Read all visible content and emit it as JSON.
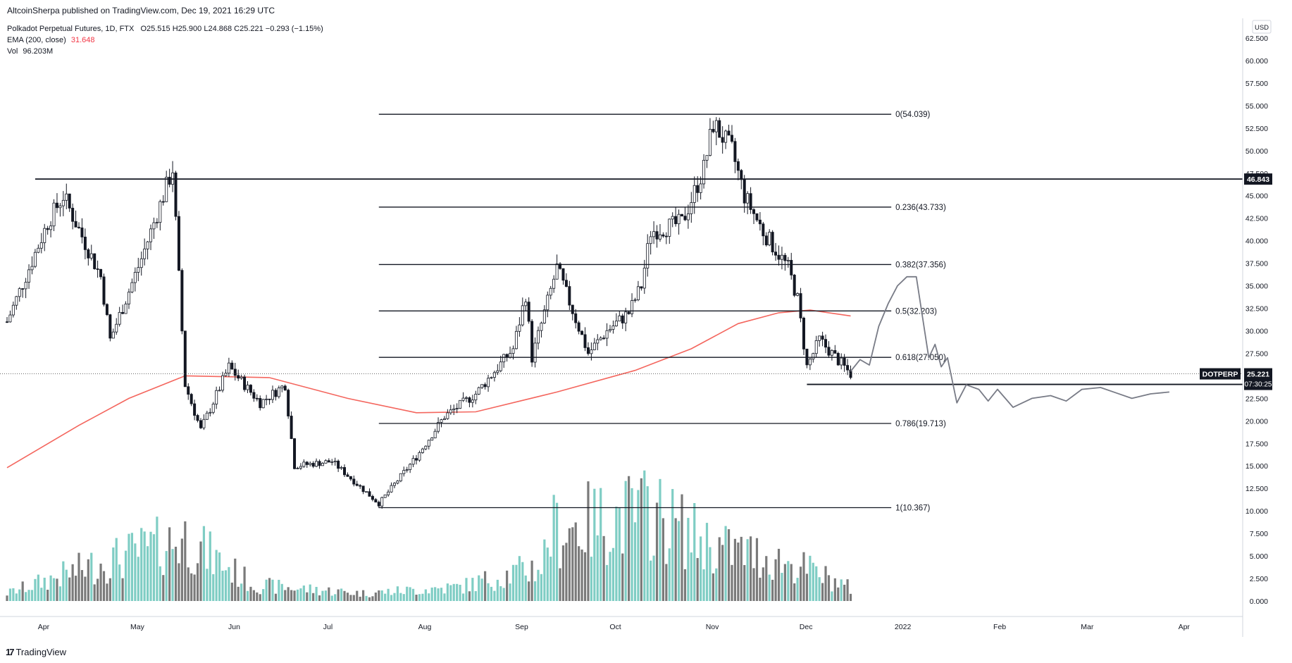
{
  "publisher": "AltcoinSherpa published on TradingView.com, Dec 19, 2021 16:29 UTC",
  "legend": {
    "symbol": "Polkadot Perpetual Futures, 1D, FTX",
    "ohlc": "O25.515  H25.900  L24.868  C25.221  −0.293 (−1.15%)",
    "ema_label": "EMA (200, close)",
    "ema_value": "31.648",
    "vol_label": "Vol",
    "vol_value": "96.203M"
  },
  "currency": "USD",
  "footer": {
    "logo_mark": "17",
    "logo_text": "TradingView"
  },
  "colors": {
    "candle": "#131722",
    "ema": "#f4665e",
    "vol_up": "#7fcdc4",
    "vol_down": "#7a7a7a",
    "projection": "#787b86"
  },
  "chart_data": {
    "type": "candlestick",
    "y_axis_ticks": [
      "62.500",
      "60.000",
      "57.500",
      "55.000",
      "52.500",
      "50.000",
      "47.500",
      "45.000",
      "42.500",
      "40.000",
      "37.500",
      "35.000",
      "32.500",
      "30.000",
      "27.500",
      "25.000",
      "22.500",
      "20.000",
      "17.500",
      "15.000",
      "12.500",
      "10.000",
      "7.500",
      "5.000",
      "2.500",
      "0.000"
    ],
    "y_range": [
      0,
      62.5
    ],
    "x_axis_labels": [
      "Apr",
      "May",
      "Jun",
      "Jul",
      "Aug",
      "Sep",
      "Oct",
      "Nov",
      "Dec",
      "2022",
      "Feb",
      "Mar",
      "Apr"
    ],
    "x_range": [
      "2021-03-23",
      "2022-04-13"
    ],
    "fib_levels": [
      {
        "label": "0(54.039)",
        "value": 54.039
      },
      {
        "label": "0.236(43.733)",
        "value": 43.733
      },
      {
        "label": "0.382(37.356)",
        "value": 37.356
      },
      {
        "label": "0.5(32.203)",
        "value": 32.203
      },
      {
        "label": "0.618(27.050)",
        "value": 27.05
      },
      {
        "label": "0.786(19.713)",
        "value": 19.713
      },
      {
        "label": "1(10.367)",
        "value": 10.367
      }
    ],
    "fib_start": "2021-07-20",
    "fib_end": "2021-12-31",
    "horizontal_levels": [
      {
        "label": "46.843",
        "value": 46.843,
        "start": "2021-04-01"
      },
      {
        "label": "24.048",
        "value": 24.048,
        "start": "2021-12-04"
      }
    ],
    "price_badge": {
      "symbol": "DOTPERP",
      "price": "25.221",
      "countdown": "07:30:25",
      "value": 25.221
    },
    "ohlc_anchor_points": [
      {
        "date": "2021-03-23",
        "price": 31
      },
      {
        "date": "2021-04-05",
        "price": 42
      },
      {
        "date": "2021-04-10",
        "price": 45
      },
      {
        "date": "2021-04-22",
        "price": 36
      },
      {
        "date": "2021-04-25",
        "price": 29
      },
      {
        "date": "2021-05-05",
        "price": 38
      },
      {
        "date": "2021-05-10",
        "price": 43
      },
      {
        "date": "2021-05-15",
        "price": 48
      },
      {
        "date": "2021-05-19",
        "price": 24
      },
      {
        "date": "2021-05-24",
        "price": 19
      },
      {
        "date": "2021-06-02",
        "price": 26
      },
      {
        "date": "2021-06-12",
        "price": 22
      },
      {
        "date": "2021-06-20",
        "price": 24
      },
      {
        "date": "2021-06-23",
        "price": 15
      },
      {
        "date": "2021-07-05",
        "price": 15.5
      },
      {
        "date": "2021-07-20",
        "price": 10.8
      },
      {
        "date": "2021-08-01",
        "price": 16
      },
      {
        "date": "2021-08-10",
        "price": 20.5
      },
      {
        "date": "2021-08-20",
        "price": 23
      },
      {
        "date": "2021-09-01",
        "price": 28
      },
      {
        "date": "2021-09-05",
        "price": 34
      },
      {
        "date": "2021-09-07",
        "price": 27
      },
      {
        "date": "2021-09-15",
        "price": 37
      },
      {
        "date": "2021-09-25",
        "price": 27.5
      },
      {
        "date": "2021-10-01",
        "price": 30
      },
      {
        "date": "2021-10-08",
        "price": 32
      },
      {
        "date": "2021-10-12",
        "price": 35
      },
      {
        "date": "2021-10-15",
        "price": 41
      },
      {
        "date": "2021-10-25",
        "price": 42
      },
      {
        "date": "2021-11-01",
        "price": 48
      },
      {
        "date": "2021-11-04",
        "price": 53
      },
      {
        "date": "2021-11-10",
        "price": 50
      },
      {
        "date": "2021-11-14",
        "price": 45
      },
      {
        "date": "2021-11-20",
        "price": 41
      },
      {
        "date": "2021-11-28",
        "price": 37
      },
      {
        "date": "2021-12-01",
        "price": 33.5
      },
      {
        "date": "2021-12-04",
        "price": 26
      },
      {
        "date": "2021-12-08",
        "price": 29
      },
      {
        "date": "2021-12-18",
        "price": 25.2
      }
    ],
    "ema_points": [
      {
        "date": "2021-03-23",
        "price": 14.8
      },
      {
        "date": "2021-04-15",
        "price": 19.5
      },
      {
        "date": "2021-05-01",
        "price": 22.5
      },
      {
        "date": "2021-05-19",
        "price": 25.0
      },
      {
        "date": "2021-06-15",
        "price": 24.8
      },
      {
        "date": "2021-07-10",
        "price": 22.5
      },
      {
        "date": "2021-08-01",
        "price": 20.9
      },
      {
        "date": "2021-08-20",
        "price": 21.0
      },
      {
        "date": "2021-09-15",
        "price": 23.2
      },
      {
        "date": "2021-10-10",
        "price": 25.6
      },
      {
        "date": "2021-10-28",
        "price": 28.0
      },
      {
        "date": "2021-11-12",
        "price": 30.8
      },
      {
        "date": "2021-11-25",
        "price": 32.0
      },
      {
        "date": "2021-12-05",
        "price": 32.3
      },
      {
        "date": "2021-12-18",
        "price": 31.65
      }
    ],
    "projection_points": [
      {
        "date": "2021-12-18",
        "price": 25.5
      },
      {
        "date": "2021-12-21",
        "price": 26.8
      },
      {
        "date": "2021-12-24",
        "price": 26.2
      },
      {
        "date": "2021-12-27",
        "price": 30.5
      },
      {
        "date": "2021-12-30",
        "price": 33
      },
      {
        "date": "2022-01-02",
        "price": 35
      },
      {
        "date": "2022-01-05",
        "price": 36
      },
      {
        "date": "2022-01-08",
        "price": 36
      },
      {
        "date": "2022-01-12",
        "price": 27
      },
      {
        "date": "2022-01-14",
        "price": 28.5
      },
      {
        "date": "2022-01-16",
        "price": 26
      },
      {
        "date": "2022-01-18",
        "price": 27
      },
      {
        "date": "2022-01-21",
        "price": 22
      },
      {
        "date": "2022-01-24",
        "price": 24
      },
      {
        "date": "2022-01-28",
        "price": 23.5
      },
      {
        "date": "2022-01-31",
        "price": 22.2
      },
      {
        "date": "2022-02-03",
        "price": 23.5
      },
      {
        "date": "2022-02-08",
        "price": 21.5
      },
      {
        "date": "2022-02-14",
        "price": 22.5
      },
      {
        "date": "2022-02-20",
        "price": 22.8
      },
      {
        "date": "2022-02-25",
        "price": 22.2
      },
      {
        "date": "2022-03-02",
        "price": 23.5
      },
      {
        "date": "2022-03-08",
        "price": 23.7
      },
      {
        "date": "2022-03-13",
        "price": 23.1
      },
      {
        "date": "2022-03-18",
        "price": 22.5
      },
      {
        "date": "2022-03-24",
        "price": 23.0
      },
      {
        "date": "2022-03-30",
        "price": 23.2
      }
    ],
    "volume_anchor_points": [
      {
        "date": "2021-03-23",
        "value": 1.2
      },
      {
        "date": "2021-04-19",
        "value": 5.5
      },
      {
        "date": "2021-05-19",
        "value": 9.8
      },
      {
        "date": "2021-06-10",
        "value": 2.5
      },
      {
        "date": "2021-07-15",
        "value": 1.2
      },
      {
        "date": "2021-08-15",
        "value": 2.2
      },
      {
        "date": "2021-09-10",
        "value": 5.5
      },
      {
        "date": "2021-09-13",
        "value": 11
      },
      {
        "date": "2021-10-15",
        "value": 13.9
      },
      {
        "date": "2021-11-04",
        "value": 8.5
      },
      {
        "date": "2021-11-20",
        "value": 7
      },
      {
        "date": "2021-12-04",
        "value": 5
      },
      {
        "date": "2021-12-18",
        "value": 2
      }
    ]
  }
}
